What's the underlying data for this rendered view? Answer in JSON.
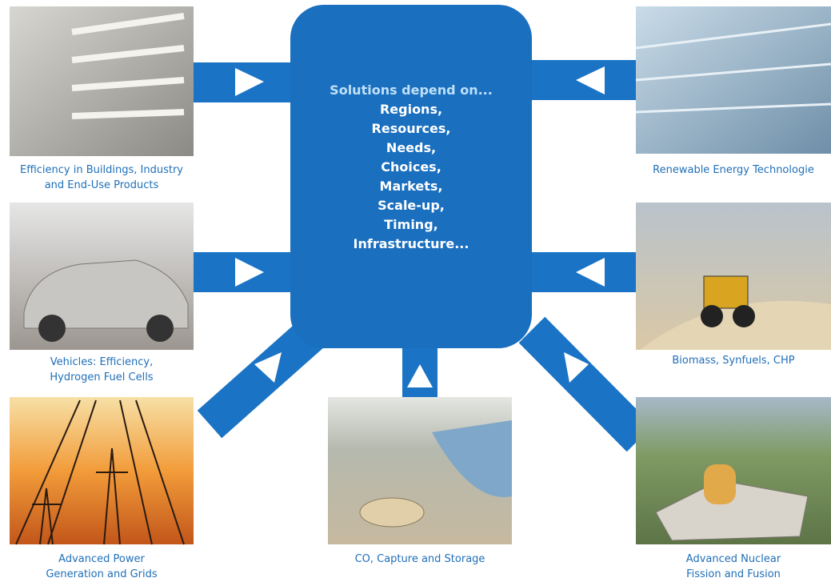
{
  "center": {
    "heading": "Solutions depend on...",
    "items": [
      "Regions,",
      "Resources,",
      "Needs,",
      "Choices,",
      "Markets,",
      "Scale-up,",
      "Timing,",
      "Infrastructure..."
    ]
  },
  "nodes": [
    {
      "lines": [
        "Efficiency in Buildings, Industry",
        "and End-Use Products"
      ]
    },
    {
      "lines": [
        "Vehicles: Efficiency,",
        "Hydrogen Fuel Cells"
      ]
    },
    {
      "lines": [
        "Advanced Power",
        "Generation and Grids"
      ]
    },
    {
      "lines": [
        "CO, Capture and Storage"
      ]
    },
    {
      "lines": [
        "Renewable Energy Technologie"
      ]
    },
    {
      "lines": [
        "Biomass, Synfuels, CHP"
      ]
    },
    {
      "lines": [
        "Advanced Nuclear",
        "Fission and Fusion"
      ]
    }
  ]
}
